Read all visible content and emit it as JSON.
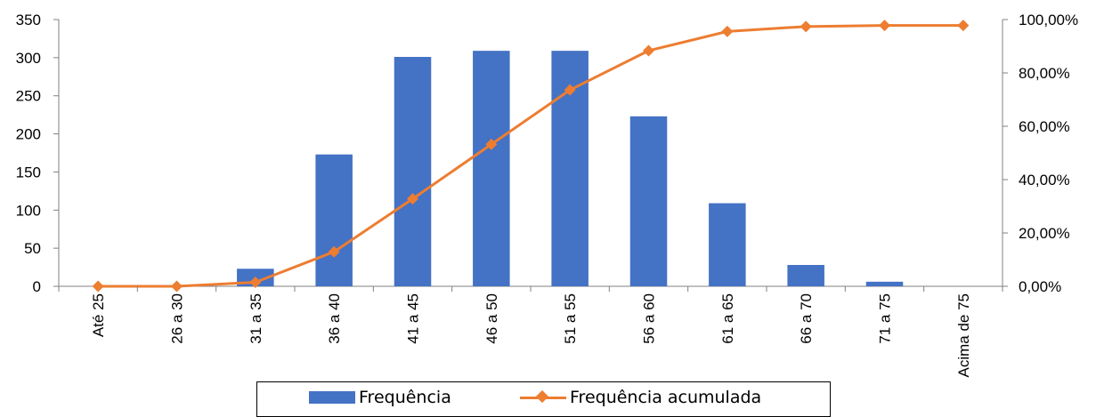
{
  "chart_data": {
    "type": "bar",
    "categories": [
      "Até 25",
      "26 a 30",
      "31 a 35",
      "36 a 40",
      "41 a 45",
      "46 a 50",
      "51 a 55",
      "56 a 60",
      "61 a 65",
      "66 a 70",
      "71 a 75",
      "Acima de 75"
    ],
    "series": [
      {
        "name": "Frequência",
        "type": "bar",
        "axis": "left",
        "color": "#4472C4",
        "values": [
          0,
          0,
          23,
          173,
          301,
          309,
          309,
          223,
          109,
          28,
          6,
          0
        ]
      },
      {
        "name": "Frequência acumulada",
        "type": "line",
        "axis": "right",
        "color": "#ED7D31",
        "marker": "diamond",
        "values": [
          0.0,
          0.0,
          1.51,
          12.93,
          32.81,
          53.21,
          73.61,
          88.34,
          95.54,
          97.39,
          97.78,
          97.78
        ]
      }
    ],
    "y_left": {
      "min": 0,
      "max": 350,
      "ticks": [
        "0",
        "50",
        "100",
        "150",
        "200",
        "250",
        "300",
        "350"
      ]
    },
    "y_right": {
      "min": 0,
      "max": 100,
      "ticks": [
        "0,00%",
        "20,00%",
        "40,00%",
        "60,00%",
        "80,00%",
        "100,00%"
      ]
    },
    "grid": false,
    "legend_position": "bottom"
  },
  "legend": {
    "bar_label": "Frequência",
    "line_label": "Frequência acumulada"
  }
}
